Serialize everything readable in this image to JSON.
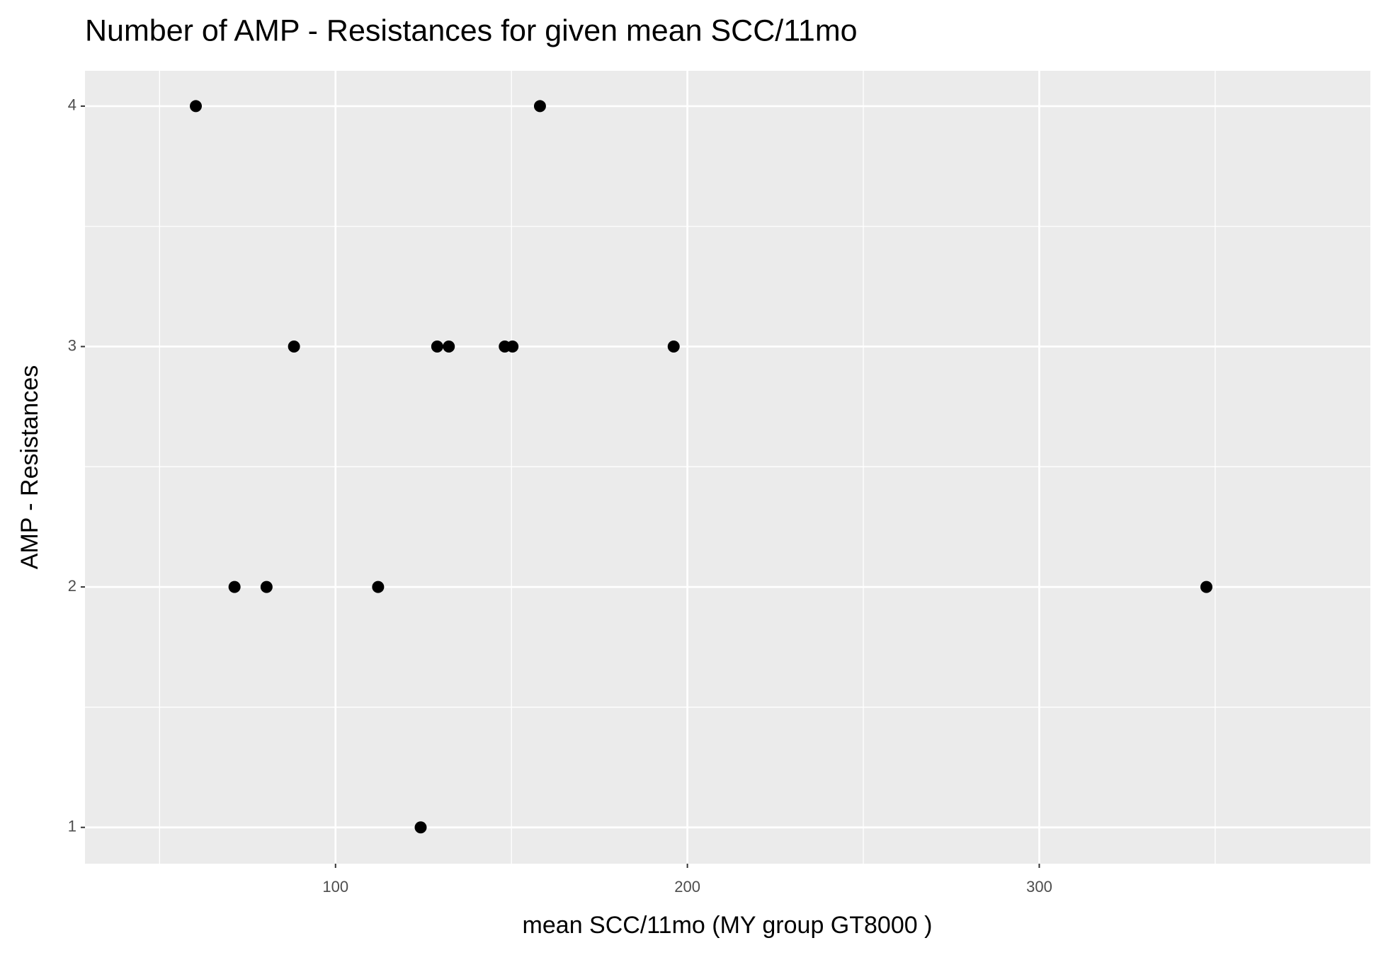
{
  "chart_data": {
    "type": "scatter",
    "title": "Number of AMP - Resistances for given mean SCC/11mo",
    "x_label": "mean SCC/11mo     (MY group GT8000 )",
    "y_label": "AMP - Resistances",
    "x": [
      60.3,
      71.3,
      80.4,
      88.2,
      112.1,
      124.2,
      128.9,
      132.2,
      148.1,
      150.3,
      158.1,
      196.1,
      347.5
    ],
    "series": [
      {
        "name": "points",
        "color": "#000000",
        "values": [
          4,
          2,
          2,
          3,
          2,
          1,
          3,
          3,
          3,
          3,
          4,
          3,
          2
        ]
      }
    ],
    "xlim": [
      28.8,
      394.1
    ],
    "xticks": [
      100,
      200,
      300
    ],
    "xminor": [
      50,
      150,
      250,
      350
    ],
    "ylim": [
      0.849,
      4.147
    ],
    "yticks": [
      1,
      2,
      3,
      4
    ],
    "yminor": [
      1.5,
      2.5,
      3.5
    ],
    "grid": true,
    "panel_color": "#ebebeb"
  }
}
